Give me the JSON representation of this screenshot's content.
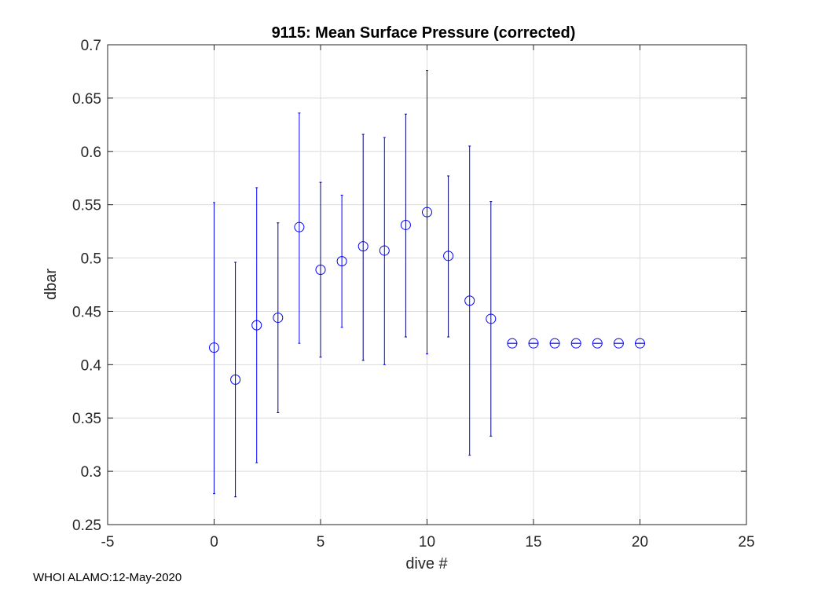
{
  "chart_data": {
    "type": "scatter",
    "title": "9115: Mean Surface Pressure (corrected)",
    "xlabel": "dive #",
    "ylabel": "dbar",
    "xlim": [
      -5,
      25
    ],
    "ylim": [
      0.25,
      0.7
    ],
    "xticks": [
      -5,
      0,
      5,
      10,
      15,
      20,
      25
    ],
    "yticks": [
      0.25,
      0.3,
      0.35,
      0.4,
      0.45,
      0.5,
      0.55,
      0.6,
      0.65,
      0.7
    ],
    "grid": true,
    "marker": "circle",
    "color": "#0000ff",
    "errorbar_colors": [
      "#0000ff",
      "#000080"
    ],
    "series": [
      {
        "x": [
          0,
          1,
          2,
          3,
          4,
          5,
          6,
          7,
          8,
          9,
          10,
          11,
          12,
          13,
          14,
          15,
          16,
          17,
          18,
          19,
          20
        ],
        "y": [
          0.416,
          0.386,
          0.437,
          0.444,
          0.529,
          0.489,
          0.497,
          0.511,
          0.507,
          0.531,
          0.543,
          0.502,
          0.46,
          0.443,
          0.42,
          0.42,
          0.42,
          0.42,
          0.42,
          0.42,
          0.42
        ],
        "lower": [
          0.279,
          0.276,
          0.308,
          0.355,
          0.42,
          0.407,
          0.435,
          0.404,
          0.4,
          0.426,
          0.41,
          0.426,
          0.315,
          0.333,
          0.42,
          0.42,
          0.42,
          0.42,
          0.42,
          0.42,
          0.42
        ],
        "upper": [
          0.552,
          0.496,
          0.566,
          0.533,
          0.636,
          0.571,
          0.559,
          0.616,
          0.613,
          0.635,
          0.676,
          0.577,
          0.605,
          0.553,
          0.42,
          0.42,
          0.42,
          0.42,
          0.42,
          0.42,
          0.42
        ]
      }
    ]
  },
  "footer": "WHOI ALAMO:12-May-2020"
}
